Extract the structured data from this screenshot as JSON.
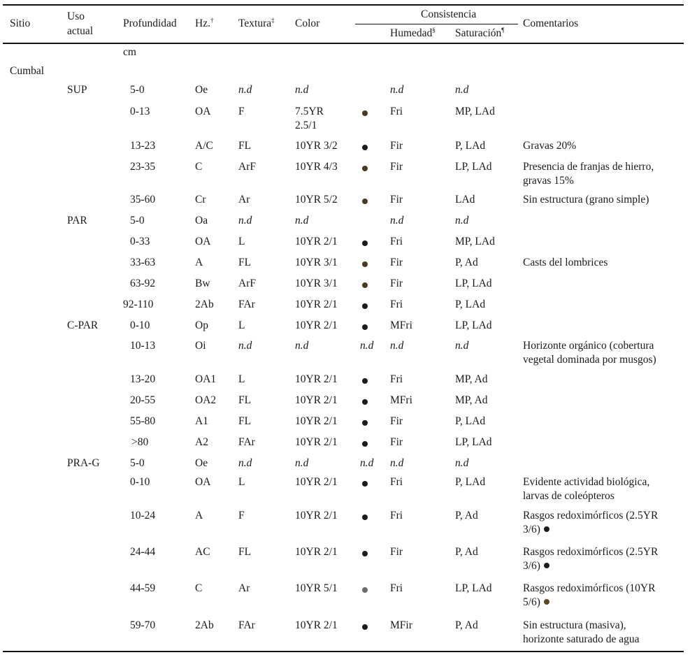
{
  "header": {
    "sitio": "Sitio",
    "uso_line1": "Uso",
    "uso_line2": "actual",
    "profundidad": "Profundidad",
    "hz": "Hz.",
    "hz_mark": "†",
    "textura": "Textura",
    "textura_mark": "‡",
    "color": "Color",
    "consistencia": "Consistencia",
    "humedad": "Humedad",
    "humedad_mark": "§",
    "saturacion": "Saturación",
    "saturacion_mark": "¶",
    "comentarios": "Comentarios"
  },
  "unit_row": "cm",
  "site": "Cumbal",
  "colors": {
    "dark": "#1c1c1c",
    "brown": "#4a3a22",
    "olive": "#5a4a1e",
    "gray": "#6b6b6b"
  },
  "rows": [
    {
      "uso": "SUP",
      "prof": "5-0",
      "hz": "Oe",
      "tex": "n.d",
      "color": [
        "n.d"
      ],
      "mark": "",
      "hum": "n.d",
      "sat": "n.d",
      "com": []
    },
    {
      "uso": "",
      "prof": "0-13",
      "hz": "OA",
      "tex": "F",
      "color": [
        "7.5YR",
        "2.5/1"
      ],
      "mark": "dot-brown",
      "hum": "Fri",
      "sat": "MP, LAd",
      "com": []
    },
    {
      "uso": "",
      "prof": "13-23",
      "hz": "A/C",
      "tex": "FL",
      "color": [
        "10YR 3/2"
      ],
      "mark": "dot-dark",
      "hum": "Fir",
      "sat": "P, LAd",
      "com": [
        "Gravas 20%"
      ]
    },
    {
      "uso": "",
      "prof": "23-35",
      "hz": "C",
      "tex": "ArF",
      "color": [
        "10YR 4/3"
      ],
      "mark": "dot-brown",
      "hum": "Fir",
      "sat": "LP, LAd",
      "com": [
        "Presencia de franjas de hierro,",
        "gravas 15%"
      ]
    },
    {
      "uso": "",
      "prof": "35-60",
      "hz": "Cr",
      "tex": "Ar",
      "color": [
        "10YR 5/2"
      ],
      "mark": "dot-brown",
      "hum": "Fir",
      "sat": "LAd",
      "com": [
        "Sin estructura (grano simple)"
      ]
    },
    {
      "uso": "PAR",
      "prof": "5-0",
      "hz": "Oa",
      "tex": "n.d",
      "color": [
        "n.d"
      ],
      "mark": "",
      "hum": "n.d",
      "sat": "n.d",
      "com": []
    },
    {
      "uso": "",
      "prof": "0-33",
      "hz": "OA",
      "tex": "L",
      "color": [
        "10YR 2/1"
      ],
      "mark": "dot-dark",
      "hum": "Fri",
      "sat": "MP, LAd",
      "com": []
    },
    {
      "uso": "",
      "prof": "33-63",
      "hz": "A",
      "tex": "FL",
      "color": [
        "10YR 3/1"
      ],
      "mark": "dot-brown",
      "hum": "Fir",
      "sat": "P, Ad",
      "com": [
        "Casts del lombrices"
      ]
    },
    {
      "uso": "",
      "prof": "63-92",
      "hz": "Bw",
      "tex": "ArF",
      "color": [
        "10YR 3/1"
      ],
      "mark": "dot-brown",
      "hum": "Fir",
      "sat": "LP, LAd",
      "com": []
    },
    {
      "uso": "",
      "prof": "92-110",
      "hz": "2Ab",
      "tex": "FAr",
      "color": [
        "10YR 2/1"
      ],
      "mark": "dot-dark",
      "hum": "Fri",
      "sat": "P, LAd",
      "com": []
    },
    {
      "uso": "C-PAR",
      "prof": "0-10",
      "hz": "Op",
      "tex": "L",
      "color": [
        "10YR 2/1"
      ],
      "mark": "dot-dark",
      "hum": "MFri",
      "sat": "LP, LAd",
      "com": []
    },
    {
      "uso": "",
      "prof": "10-13",
      "hz": "Oi",
      "tex": "n.d",
      "color": [
        "n.d"
      ],
      "mark": "n.d",
      "hum": "n.d",
      "sat": "n.d",
      "com": [
        "Horizonte orgánico (cobertura",
        "vegetal dominada por musgos)"
      ]
    },
    {
      "uso": "",
      "prof": "13-20",
      "hz": "OA1",
      "tex": "L",
      "color": [
        "10YR 2/1"
      ],
      "mark": "dot-dark",
      "hum": "Fri",
      "sat": "MP, Ad",
      "com": []
    },
    {
      "uso": "",
      "prof": "20-55",
      "hz": "OA2",
      "tex": "FL",
      "color": [
        "10YR 2/1"
      ],
      "mark": "dot-dark",
      "hum": "MFri",
      "sat": "MP, Ad",
      "com": []
    },
    {
      "uso": "",
      "prof": "55-80",
      "hz": "A1",
      "tex": "FL",
      "color": [
        "10YR 2/1"
      ],
      "mark": "dot-dark",
      "hum": "Fir",
      "sat": "P, LAd",
      "com": []
    },
    {
      "uso": "",
      "prof": ">80",
      "hz": "A2",
      "tex": "FAr",
      "color": [
        "10YR 2/1"
      ],
      "mark": "dot-dark",
      "hum": "Fir",
      "sat": "LP, LAd",
      "com": []
    },
    {
      "uso": "PRA-G",
      "prof": "5-0",
      "hz": "Oe",
      "tex": "n.d",
      "color": [
        "n.d"
      ],
      "mark": "n.d",
      "hum": "n.d",
      "sat": "n.d",
      "com": []
    },
    {
      "uso": "",
      "prof": "0-10",
      "hz": "OA",
      "tex": "L",
      "color": [
        "10YR 2/1"
      ],
      "mark": "dot-dark",
      "hum": "Fri",
      "sat": "P, LAd",
      "com": [
        "Evidente actividad biológica,",
        "larvas de coleópteros"
      ]
    },
    {
      "uso": "",
      "prof": "10-24",
      "hz": "A",
      "tex": "F",
      "color": [
        "10YR 2/1"
      ],
      "mark": "dot-dark",
      "hum": "Fri",
      "sat": "P, Ad",
      "com": [
        "Rasgos redoximórficos (2.5YR",
        "3/6)"
      ],
      "com_mark": "dot-dark"
    },
    {
      "uso": "",
      "prof": "24-44",
      "hz": "AC",
      "tex": "FL",
      "color": [
        "10YR 2/1"
      ],
      "mark": "dot-dark",
      "hum": "Fir",
      "sat": "P, Ad",
      "com": [
        "Rasgos redoximórficos (2.5YR",
        "3/6)"
      ],
      "com_mark": "dot-dark"
    },
    {
      "uso": "",
      "prof": "44-59",
      "hz": "C",
      "tex": "Ar",
      "color": [
        "10YR 5/1"
      ],
      "mark": "dot-gray",
      "hum": "Fri",
      "sat": "LP, LAd",
      "com": [
        "Rasgos redoximórficos (10YR",
        "5/6)"
      ],
      "com_mark": "dot-olive"
    },
    {
      "uso": "",
      "prof": "59-70",
      "hz": "2Ab",
      "tex": "FAr",
      "color": [
        "10YR 2/1"
      ],
      "mark": "dot-dark",
      "hum": "MFir",
      "sat": "P, Ad",
      "com": [
        "Sin estructura (masiva),",
        "horizonte saturado de agua"
      ]
    }
  ]
}
